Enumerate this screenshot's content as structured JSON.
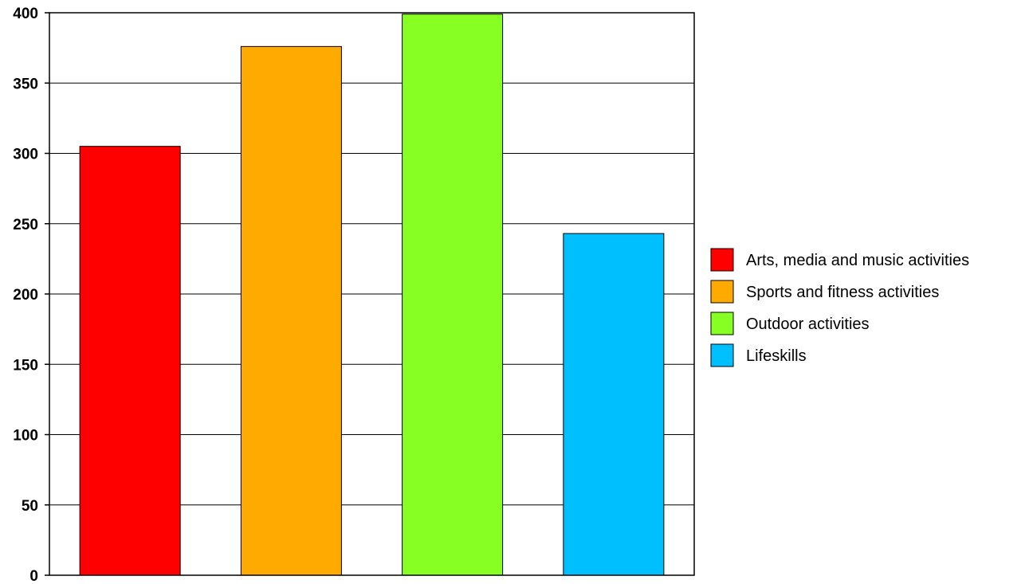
{
  "chart_data": {
    "type": "bar",
    "categories": [
      "Arts, media and music activities",
      "Sports and fitness activities",
      "Outdoor activities",
      "Lifeskills"
    ],
    "values": [
      305,
      376,
      399,
      243
    ],
    "colors": [
      "#ff0000",
      "#ffaa00",
      "#88ff22",
      "#00bfff"
    ],
    "ylim": [
      0,
      400
    ],
    "yticks": [
      "0",
      "50",
      "100",
      "150",
      "200",
      "250",
      "300",
      "350",
      "400"
    ],
    "ytick_values": [
      0,
      50,
      100,
      150,
      200,
      250,
      300,
      350,
      400
    ],
    "grid": true,
    "legend_position": "right",
    "title": "",
    "xlabel": "",
    "ylabel": ""
  }
}
